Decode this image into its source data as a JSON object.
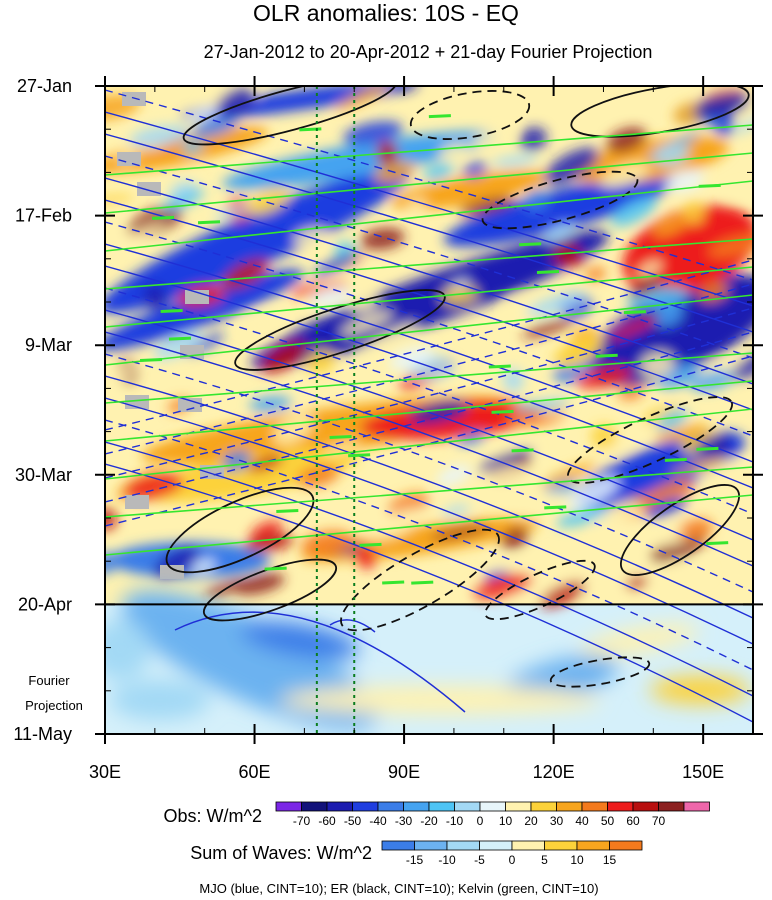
{
  "chart_data": {
    "type": "heatmap",
    "title": "OLR anomalies: 10S - EQ",
    "subtitle": "27-Jan-2012 to 20-Apr-2012 + 21-day Fourier Projection",
    "x_tick_labels": [
      "30E",
      "60E",
      "90E",
      "120E",
      "150E"
    ],
    "x_tick_values": [
      30,
      60,
      90,
      120,
      150
    ],
    "xlim": [
      30,
      160
    ],
    "y_tick_labels": [
      "27-Jan",
      "17-Feb",
      "9-Mar",
      "30-Mar",
      "20-Apr",
      "11-May"
    ],
    "y_tick_days": [
      0,
      21,
      42,
      63,
      84,
      105
    ],
    "ylim_days": [
      0,
      105
    ],
    "observation_end_day": 84,
    "projection_label": [
      "Fourier",
      "Projection"
    ],
    "reference_longitudes": [
      72.5,
      80
    ],
    "obs_colorbar": {
      "name": "Obs: W/m^2",
      "levels": [
        "-70",
        "-60",
        "-50",
        "-40",
        "-30",
        "-20",
        "-10",
        "0",
        "10",
        "20",
        "30",
        "40",
        "50",
        "60",
        "70"
      ],
      "colors": [
        "#7b26e6",
        "#12127a",
        "#1c1cb0",
        "#1f3ee0",
        "#3b7de8",
        "#45a3f0",
        "#4ec4f5",
        "#a3d9f5",
        "#e8f6fb",
        "#fff2b0",
        "#fcd23a",
        "#f7a51e",
        "#f47a1d",
        "#ed1c1c",
        "#b80f0f",
        "#8c2020",
        "#ee66aa"
      ]
    },
    "waves_colorbar": {
      "name": "Sum of Waves: W/m^2",
      "levels": [
        "-15",
        "-10",
        "-5",
        "0",
        "5",
        "10",
        "15"
      ],
      "colors": [
        "#3b7de8",
        "#6cb2f0",
        "#a3d9f5",
        "#d5f0fa",
        "#fff2b0",
        "#fcd23a",
        "#f7a51e",
        "#f47a1d"
      ]
    },
    "contour_legend": "MJO (blue, CINT=10); ER (black, CINT=10); Kelvin (green, CINT=10)",
    "contour_colors": {
      "mjo": "#1f2fd6",
      "er": "#111111",
      "kelvin": "#35e62f"
    }
  }
}
